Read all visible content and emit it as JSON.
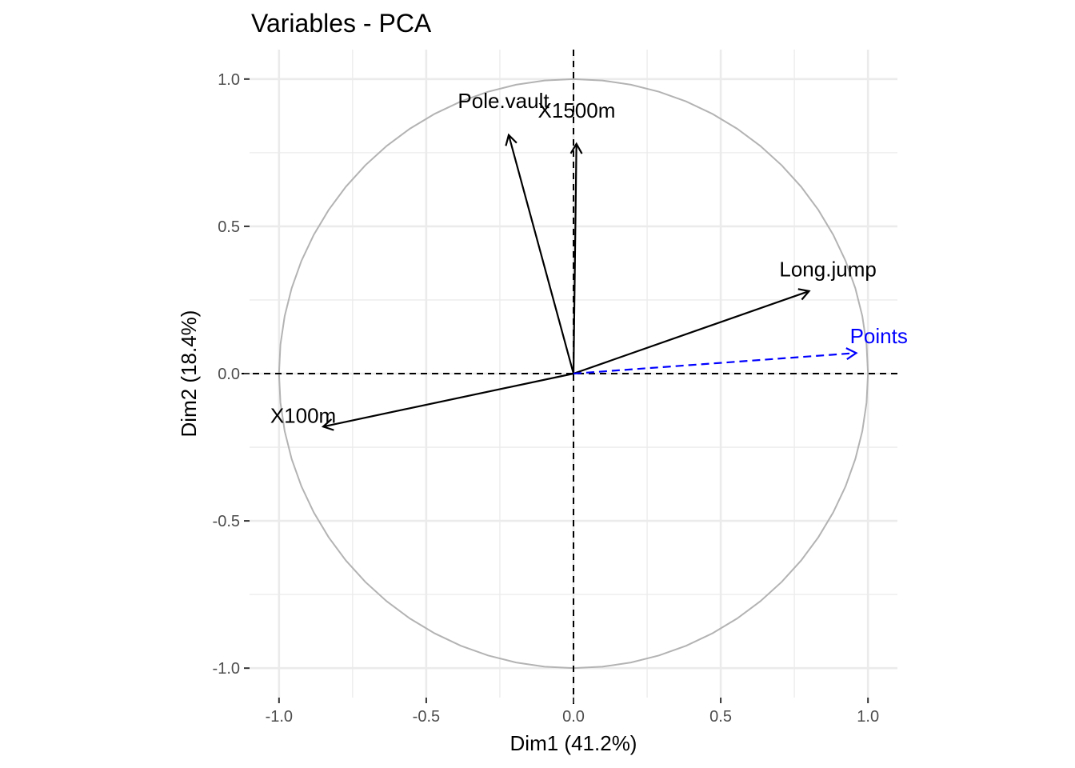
{
  "chart_data": {
    "type": "scatter",
    "title": "Variables - PCA",
    "xlabel": "Dim1 (41.2%)",
    "ylabel": "Dim2 (18.4%)",
    "xlim": [
      -1.1,
      1.1
    ],
    "ylim": [
      -1.1,
      1.1
    ],
    "x_ticks": [
      -1.0,
      -0.5,
      0.0,
      0.5,
      1.0
    ],
    "y_ticks": [
      -1.0,
      -0.5,
      0.0,
      0.5,
      1.0
    ],
    "x_tick_labels": [
      "-1.0",
      "-0.5",
      "0.0",
      "0.5",
      "1.0"
    ],
    "y_tick_labels": [
      "-1.0",
      "-0.5",
      "0.0",
      "0.5",
      "1.0"
    ],
    "grid": true,
    "correlation_circle": true,
    "variables": [
      {
        "name": "X100m",
        "x": -0.85,
        "y": -0.18,
        "color": "#000000",
        "supplementary": false
      },
      {
        "name": "Long.jump",
        "x": 0.8,
        "y": 0.28,
        "color": "#000000",
        "supplementary": false
      },
      {
        "name": "Pole.vault",
        "x": -0.22,
        "y": 0.81,
        "color": "#000000",
        "supplementary": false
      },
      {
        "name": "X1500m",
        "x": 0.01,
        "y": 0.78,
        "color": "#000000",
        "supplementary": false
      },
      {
        "name": "Points",
        "x": 0.96,
        "y": 0.07,
        "color": "#0000ff",
        "supplementary": true
      }
    ]
  }
}
